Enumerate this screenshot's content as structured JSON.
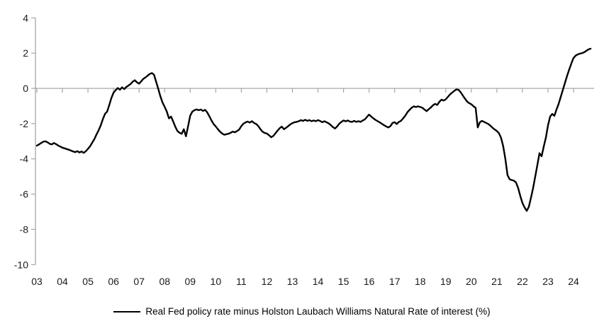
{
  "chart_data": {
    "type": "line",
    "legend_position": "bottom",
    "grid": false,
    "zero_line": true,
    "axis_color": "#a6a6a6",
    "text_color": "#1a1a1a",
    "ylim": [
      -10,
      4
    ],
    "y_ticks": [
      4,
      2,
      0,
      -2,
      -4,
      -6,
      -8,
      -10
    ],
    "x_tick_years": [
      2003,
      2004,
      2005,
      2006,
      2007,
      2008,
      2009,
      2010,
      2011,
      2012,
      2013,
      2014,
      2015,
      2016,
      2017,
      2018,
      2019,
      2020,
      2021,
      2022,
      2023,
      2024
    ],
    "x_tick_labels": [
      "03",
      "04",
      "05",
      "06",
      "07",
      "08",
      "09",
      "10",
      "11",
      "12",
      "13",
      "14",
      "15",
      "16",
      "17",
      "18",
      "19",
      "20",
      "21",
      "22",
      "23",
      "24"
    ],
    "series": [
      {
        "name": "Real Fed policy rate minus Holston Laubach Williams Natural Rate of interest (%)",
        "color": "#000000",
        "start_year": 2003,
        "points_per_year": 12,
        "values": [
          -3.25,
          -3.18,
          -3.1,
          -3.03,
          -3.0,
          -3.06,
          -3.14,
          -3.18,
          -3.1,
          -3.16,
          -3.24,
          -3.3,
          -3.36,
          -3.4,
          -3.44,
          -3.48,
          -3.53,
          -3.58,
          -3.62,
          -3.56,
          -3.64,
          -3.58,
          -3.66,
          -3.56,
          -3.43,
          -3.28,
          -3.08,
          -2.88,
          -2.62,
          -2.38,
          -2.1,
          -1.75,
          -1.45,
          -1.32,
          -0.95,
          -0.55,
          -0.25,
          -0.1,
          0.02,
          -0.08,
          0.06,
          -0.04,
          0.08,
          0.16,
          0.25,
          0.38,
          0.46,
          0.34,
          0.27,
          0.4,
          0.54,
          0.62,
          0.72,
          0.82,
          0.87,
          0.78,
          0.38,
          -0.02,
          -0.45,
          -0.8,
          -1.05,
          -1.32,
          -1.7,
          -1.6,
          -1.88,
          -2.18,
          -2.42,
          -2.52,
          -2.58,
          -2.32,
          -2.72,
          -2.15,
          -1.55,
          -1.32,
          -1.24,
          -1.19,
          -1.24,
          -1.2,
          -1.28,
          -1.22,
          -1.36,
          -1.58,
          -1.82,
          -2.02,
          -2.16,
          -2.32,
          -2.46,
          -2.56,
          -2.63,
          -2.6,
          -2.57,
          -2.52,
          -2.45,
          -2.49,
          -2.42,
          -2.34,
          -2.14,
          -2.0,
          -1.93,
          -1.88,
          -1.94,
          -1.86,
          -1.96,
          -2.02,
          -2.14,
          -2.32,
          -2.46,
          -2.53,
          -2.56,
          -2.66,
          -2.77,
          -2.7,
          -2.55,
          -2.4,
          -2.26,
          -2.17,
          -2.32,
          -2.24,
          -2.14,
          -2.04,
          -1.97,
          -1.92,
          -1.9,
          -1.86,
          -1.8,
          -1.85,
          -1.78,
          -1.84,
          -1.8,
          -1.86,
          -1.82,
          -1.86,
          -1.8,
          -1.85,
          -1.92,
          -1.86,
          -1.92,
          -1.98,
          -2.08,
          -2.2,
          -2.28,
          -2.16,
          -2.0,
          -1.9,
          -1.82,
          -1.87,
          -1.82,
          -1.88,
          -1.9,
          -1.84,
          -1.9,
          -1.86,
          -1.9,
          -1.82,
          -1.76,
          -1.62,
          -1.49,
          -1.6,
          -1.7,
          -1.79,
          -1.86,
          -1.93,
          -2.01,
          -2.09,
          -2.16,
          -2.22,
          -2.14,
          -1.96,
          -1.92,
          -2.02,
          -1.9,
          -1.84,
          -1.7,
          -1.55,
          -1.35,
          -1.22,
          -1.1,
          -1.02,
          -1.06,
          -1.02,
          -1.06,
          -1.1,
          -1.2,
          -1.29,
          -1.18,
          -1.08,
          -0.96,
          -0.88,
          -0.94,
          -0.76,
          -0.64,
          -0.69,
          -0.62,
          -0.48,
          -0.34,
          -0.24,
          -0.14,
          -0.06,
          -0.08,
          -0.22,
          -0.4,
          -0.58,
          -0.74,
          -0.84,
          -0.9,
          -1.02,
          -1.1,
          -2.22,
          -1.92,
          -1.84,
          -1.9,
          -1.96,
          -2.02,
          -2.12,
          -2.24,
          -2.34,
          -2.42,
          -2.55,
          -2.82,
          -3.3,
          -4.02,
          -4.92,
          -5.16,
          -5.2,
          -5.24,
          -5.34,
          -5.65,
          -6.1,
          -6.5,
          -6.76,
          -6.95,
          -6.72,
          -6.2,
          -5.65,
          -5.0,
          -4.35,
          -3.68,
          -3.85,
          -3.3,
          -2.8,
          -2.1,
          -1.6,
          -1.45,
          -1.56,
          -1.2,
          -0.88,
          -0.48,
          -0.08,
          0.32,
          0.72,
          1.08,
          1.42,
          1.72,
          1.86,
          1.93,
          1.97,
          2.0,
          2.05,
          2.13,
          2.21,
          2.25
        ]
      }
    ]
  },
  "legend": {
    "label": "Real Fed policy rate minus Holston Laubach Williams Natural Rate of interest (%)"
  }
}
